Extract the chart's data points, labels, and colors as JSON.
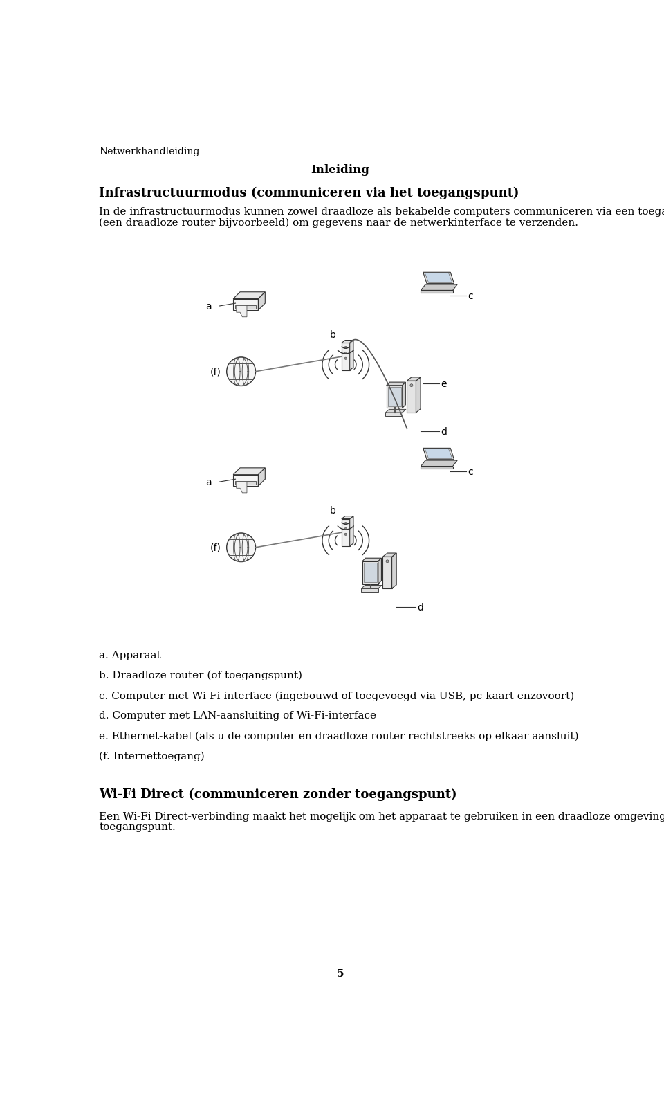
{
  "header": "Netwerkhandleiding",
  "section_title": "Inleiding",
  "heading1": "Infrastructuurmodus (communiceren via het toegangspunt)",
  "para1_line1": "In de infrastructuurmodus kunnen zowel draadloze als bekabelde computers communiceren via een toegangspunt",
  "para1_line2": "(een draadloze router bijvoorbeeld) om gegevens naar de netwerkinterface te verzenden.",
  "list_items": [
    "a. Apparaat",
    "b. Draadloze router (of toegangspunt)",
    "c. Computer met Wi-Fi-interface (ingebouwd of toegevoegd via USB, pc-kaart enzovoort)",
    "d. Computer met LAN-aansluiting of Wi-Fi-interface",
    "e. Ethernet-kabel (als u de computer en draadloze router rechtstreeks op elkaar aansluit)",
    "(f. Internettoegang)"
  ],
  "heading2": "Wi-Fi Direct (communiceren zonder toegangspunt)",
  "para2_line1": "Een Wi-Fi Direct-verbinding maakt het mogelijk om het apparaat te gebruiken in een draadloze omgeving zonder",
  "para2_line2": "toegangspunt.",
  "page_number": "5",
  "bg_color": "#ffffff"
}
